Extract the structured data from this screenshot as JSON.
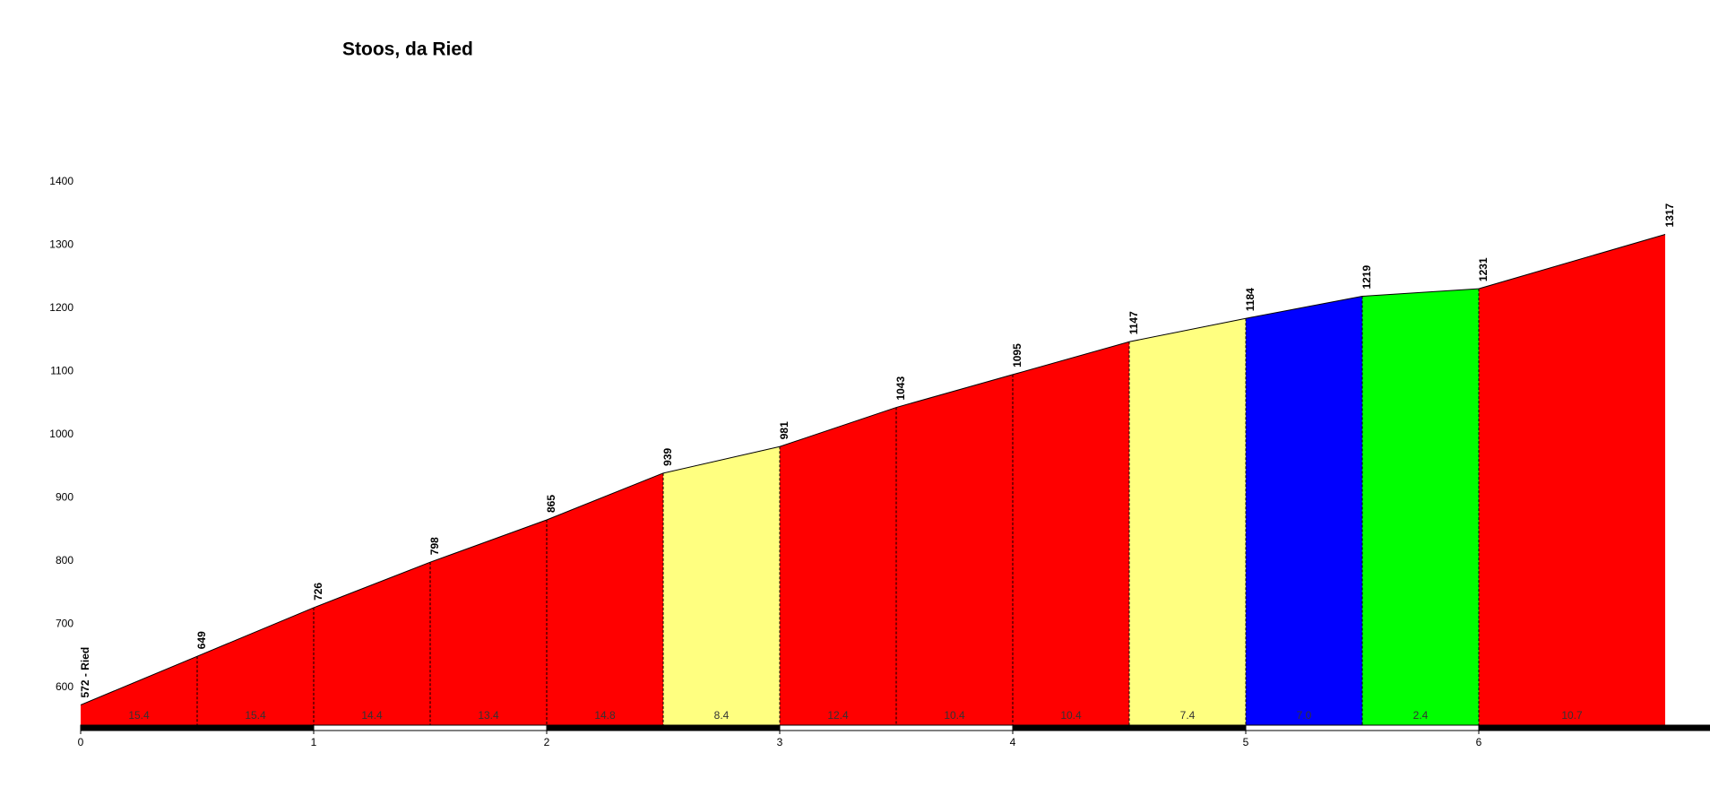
{
  "chart_data": {
    "type": "area",
    "title": "Stoos, da Ried",
    "x": [
      0,
      0.5,
      1,
      1.5,
      2,
      2.5,
      3,
      3.5,
      4,
      4.5,
      5,
      5.5,
      6,
      6.8
    ],
    "values": [
      572,
      649,
      726,
      798,
      865,
      939,
      981,
      1043,
      1095,
      1147,
      1184,
      1219,
      1231,
      1317
    ],
    "value_labels": [
      "572 - Ried",
      "649",
      "726",
      "798",
      "865",
      "939",
      "981",
      "1043",
      "1095",
      "1147",
      "1184",
      "1219",
      "1231",
      "1317"
    ],
    "grades": [
      15.4,
      15.4,
      14.4,
      13.4,
      14.8,
      8.4,
      12.4,
      10.4,
      10.4,
      7.4,
      7,
      2.4,
      10.7
    ],
    "grade_labels": [
      "15.4",
      "15.4",
      "14.4",
      "13.4",
      "14.8",
      "8.4",
      "12.4",
      "10.4",
      "10.4",
      "7.4",
      "7.0",
      "2.4",
      "10.7"
    ],
    "colors": [
      "#ff0000",
      "#ff0000",
      "#ff0000",
      "#ff0000",
      "#ff0000",
      "#ffff80",
      "#ff0000",
      "#ff0000",
      "#ff0000",
      "#ffff80",
      "#0000ff",
      "#00ff00",
      "#ff0000"
    ],
    "xlim": [
      0,
      7
    ],
    "xticks": [
      0,
      1,
      2,
      3,
      4,
      5,
      6
    ],
    "ylim": [
      540,
      1400
    ],
    "yticks": [
      600,
      700,
      800,
      900,
      1000,
      1100,
      1200,
      1300,
      1400
    ]
  }
}
